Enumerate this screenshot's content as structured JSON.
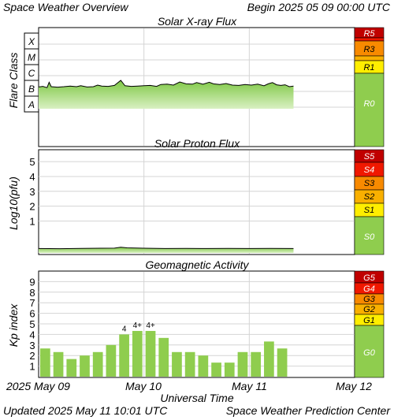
{
  "header": {
    "title": "Space Weather Overview",
    "begin": "Begin 2025 05 09 00:00 UTC"
  },
  "footer": {
    "updated": "Updated 2025 May 11 10:01 UTC",
    "organization": "Space Weather Prediction Center"
  },
  "x_axis": {
    "title": "Universal Time",
    "day_labels": [
      "2025 May 09",
      "May 10",
      "May 11",
      "May 12"
    ]
  },
  "colors": {
    "quiet_green": "#8fcd4e",
    "scale_1": "#ffee00",
    "scale_2": "#f9b000",
    "scale_3": "#f88a00",
    "scale_4": "#f01800",
    "scale_5": "#c00000",
    "bar_green": "#8fcd4e"
  },
  "chart_data": [
    {
      "type": "area",
      "title": "Solar X-ray Flux",
      "ylabel": "Flare Class",
      "y_classes": [
        "X",
        "M",
        "C",
        "B",
        "A"
      ],
      "scale_labels": [
        "R5",
        "R3",
        "R1",
        "R0"
      ],
      "x_range_days": [
        0,
        3
      ],
      "data_end_day": 2.42,
      "y_class_range": [
        0,
        5
      ],
      "series_class_level": [
        [
          0.0,
          2.28
        ],
        [
          0.04,
          2.32
        ],
        [
          0.08,
          2.24
        ],
        [
          0.1,
          2.58
        ],
        [
          0.12,
          2.3
        ],
        [
          0.18,
          2.27
        ],
        [
          0.24,
          2.3
        ],
        [
          0.3,
          2.34
        ],
        [
          0.36,
          2.3
        ],
        [
          0.4,
          2.36
        ],
        [
          0.46,
          2.28
        ],
        [
          0.52,
          2.3
        ],
        [
          0.56,
          2.4
        ],
        [
          0.6,
          2.34
        ],
        [
          0.66,
          2.32
        ],
        [
          0.72,
          2.38
        ],
        [
          0.78,
          2.7
        ],
        [
          0.82,
          2.36
        ],
        [
          0.88,
          2.32
        ],
        [
          0.94,
          2.34
        ],
        [
          1.0,
          2.36
        ],
        [
          1.06,
          2.38
        ],
        [
          1.12,
          2.32
        ],
        [
          1.16,
          2.44
        ],
        [
          1.22,
          2.46
        ],
        [
          1.28,
          2.4
        ],
        [
          1.34,
          2.6
        ],
        [
          1.4,
          2.48
        ],
        [
          1.46,
          2.46
        ],
        [
          1.5,
          2.56
        ],
        [
          1.56,
          2.46
        ],
        [
          1.62,
          2.58
        ],
        [
          1.66,
          2.48
        ],
        [
          1.72,
          2.44
        ],
        [
          1.78,
          2.5
        ],
        [
          1.84,
          2.4
        ],
        [
          1.9,
          2.38
        ],
        [
          1.96,
          2.44
        ],
        [
          2.02,
          2.4
        ],
        [
          2.08,
          2.46
        ],
        [
          2.14,
          2.36
        ],
        [
          2.18,
          2.48
        ],
        [
          2.22,
          2.56
        ],
        [
          2.26,
          2.42
        ],
        [
          2.3,
          2.38
        ],
        [
          2.34,
          2.42
        ],
        [
          2.38,
          2.3
        ],
        [
          2.42,
          2.34
        ]
      ]
    },
    {
      "type": "area",
      "title": "Solar Proton Flux",
      "ylabel": "Log10(pfu)",
      "y_ticks": [
        "5",
        "4",
        "3",
        "2",
        "1"
      ],
      "scale_labels": [
        "S5",
        "S4",
        "S3",
        "S2",
        "S1",
        "S0"
      ],
      "x_range_days": [
        0,
        3
      ],
      "ylim": [
        -1.2,
        5.8
      ],
      "series": [
        {
          "values": [
            [
              0.0,
              -0.85
            ],
            [
              0.2,
              -0.86
            ],
            [
              0.4,
              -0.84
            ],
            [
              0.6,
              -0.83
            ],
            [
              0.72,
              -0.82
            ],
            [
              0.78,
              -0.76
            ],
            [
              0.84,
              -0.8
            ],
            [
              1.0,
              -0.83
            ],
            [
              1.2,
              -0.85
            ],
            [
              1.4,
              -0.84
            ],
            [
              1.6,
              -0.85
            ],
            [
              1.8,
              -0.84
            ],
            [
              2.0,
              -0.85
            ],
            [
              2.2,
              -0.84
            ],
            [
              2.42,
              -0.85
            ]
          ]
        }
      ]
    },
    {
      "type": "bar",
      "title": "Geomagnetic Activity",
      "ylabel": "Kp index",
      "ylim": [
        0,
        10
      ],
      "y_ticks": [
        "9",
        "8",
        "7",
        "6",
        "5",
        "4",
        "3",
        "2",
        "1"
      ],
      "scale_labels": [
        "G5",
        "G4",
        "G3",
        "G2",
        "G1",
        "G0"
      ],
      "bar_width_days": 0.125,
      "values": [
        2.67,
        2.33,
        1.67,
        2.0,
        2.33,
        3.0,
        4.0,
        4.33,
        4.33,
        3.67,
        2.33,
        2.33,
        2.0,
        1.33,
        1.33,
        2.33,
        2.33,
        3.33,
        2.67
      ],
      "data_labels": [
        "",
        "",
        "",
        "",
        "",
        "",
        "4",
        "4+",
        "4+",
        "",
        "",
        "",
        "",
        "",
        "",
        "",
        "",
        "",
        ""
      ]
    }
  ]
}
